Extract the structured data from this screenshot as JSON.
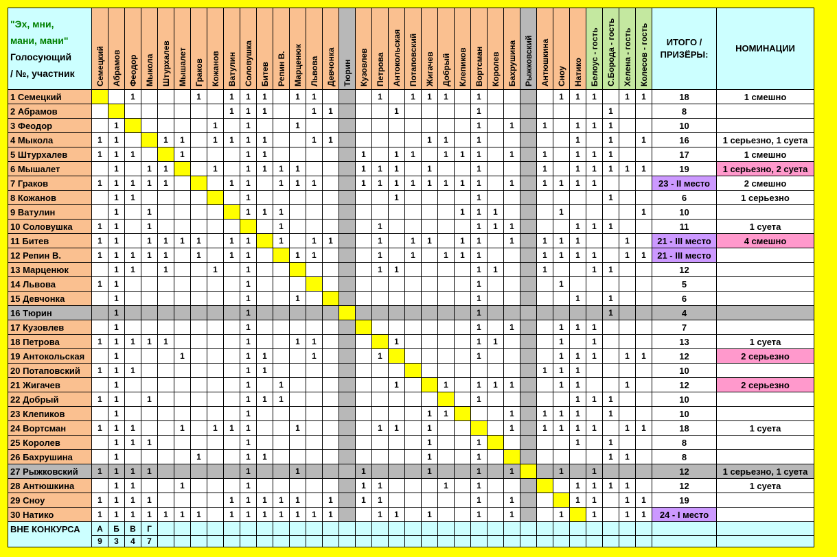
{
  "title": {
    "line1": "\"Эх, мни,",
    "line2": "мани, мани\"",
    "line3": "Голосующий",
    "line4": "/ №, участник"
  },
  "participants": [
    "Семецкий",
    "Абрамов",
    "Феодор",
    "Мыкола",
    "Штурхалев",
    "Мышалет",
    "Граков",
    "Кожанов",
    "Ватулин",
    "Соловушка",
    "Битев",
    "Репин В.",
    "Марценюк",
    "Львова",
    "Девчонка",
    "Тюрин",
    "Кузовлев",
    "Петрова",
    "Антокольская",
    "Потаповский",
    "Жигачев",
    "Добрый",
    "Клепиков",
    "Вортсман",
    "Королев",
    "Бахрушина",
    "Рыжковский",
    "Антюшкина",
    "Сноу",
    "Натико"
  ],
  "guests": [
    "Белоус - гость",
    "С.Борода - гость",
    "Хелена - гость",
    "Колесов - гость"
  ],
  "summary_header": "ИТОГО / ПРИЗЁРЫ:",
  "nominations_header": "НОМИНАЦИИ",
  "gray_participants": [
    16,
    27
  ],
  "rows": [
    {
      "label": "1 Семецкий",
      "votes": [
        3,
        7,
        9,
        10,
        11,
        13,
        14,
        18,
        20,
        21,
        22,
        24,
        29,
        30
      ],
      "guests": [
        1,
        3,
        4
      ],
      "total": "18",
      "nomination": "1 смешно"
    },
    {
      "label": "2 Абрамов",
      "votes": [
        9,
        10,
        11,
        14,
        15,
        19,
        24
      ],
      "guests": [
        2
      ],
      "total": "8",
      "nomination": ""
    },
    {
      "label": "3 Феодор",
      "votes": [
        2,
        8,
        10,
        13,
        24,
        26,
        28,
        30
      ],
      "guests": [
        1,
        2
      ],
      "total": "10",
      "nomination": ""
    },
    {
      "label": "4 Мыкола",
      "votes": [
        1,
        2,
        5,
        6,
        8,
        9,
        10,
        11,
        14,
        15,
        21,
        22,
        24,
        30
      ],
      "guests": [
        2,
        4
      ],
      "total": "16",
      "nomination": "1 серьезно, 1 суета"
    },
    {
      "label": "5 Штурхалев",
      "votes": [
        1,
        2,
        3,
        6,
        10,
        11,
        17,
        19,
        20,
        22,
        23,
        24,
        26,
        28,
        30
      ],
      "guests": [
        1,
        2
      ],
      "total": "17",
      "nomination": "1 смешно"
    },
    {
      "label": "6 Мышалет",
      "votes": [
        2,
        4,
        5,
        8,
        10,
        11,
        12,
        13,
        17,
        18,
        19,
        21,
        24,
        28,
        30
      ],
      "guests": [
        1,
        2,
        3,
        4
      ],
      "total": "19",
      "nomination": "1 серьезно, 2 суета",
      "nom_pink": true
    },
    {
      "label": "7 Граков",
      "votes": [
        1,
        2,
        3,
        4,
        5,
        9,
        10,
        12,
        13,
        14,
        17,
        18,
        19,
        20,
        21,
        22,
        23,
        24,
        26,
        28,
        29,
        30
      ],
      "guests": [
        1
      ],
      "total": "23 - II место",
      "prize": true,
      "nomination": "2 смешно"
    },
    {
      "label": "8 Кожанов",
      "votes": [
        2,
        3,
        10,
        19,
        24
      ],
      "guests": [
        2
      ],
      "total": "6",
      "nomination": "1 серьезно"
    },
    {
      "label": "9 Ватулин",
      "votes": [
        2,
        4,
        10,
        11,
        12,
        23,
        24,
        25,
        29
      ],
      "guests": [
        4
      ],
      "total": "10",
      "nomination": ""
    },
    {
      "label": "10 Соловушка",
      "votes": [
        1,
        2,
        4,
        12,
        18,
        24,
        25,
        26,
        30
      ],
      "guests": [
        1,
        2
      ],
      "total": "11",
      "nomination": "1 суета"
    },
    {
      "label": "11 Битев",
      "votes": [
        1,
        2,
        4,
        5,
        6,
        7,
        9,
        10,
        12,
        14,
        15,
        18,
        20,
        21,
        23,
        24,
        26,
        28,
        29,
        30
      ],
      "guests": [
        3
      ],
      "total": "21 - III место",
      "prize": true,
      "nomination": "4 смешно",
      "nom_pink": true
    },
    {
      "label": "12 Репин В.",
      "votes": [
        1,
        2,
        3,
        4,
        5,
        7,
        9,
        10,
        13,
        14,
        18,
        20,
        22,
        23,
        24,
        28,
        29,
        30
      ],
      "guests": [
        1,
        3,
        4
      ],
      "total": "21 - III место",
      "prize": true,
      "nomination": ""
    },
    {
      "label": "13 Марценюк",
      "votes": [
        2,
        3,
        5,
        8,
        10,
        18,
        19,
        24,
        25,
        28
      ],
      "guests": [
        1,
        2
      ],
      "total": "12",
      "nomination": ""
    },
    {
      "label": "14 Львова",
      "votes": [
        1,
        2,
        10,
        24,
        29
      ],
      "guests": [],
      "total": "5",
      "nomination": ""
    },
    {
      "label": "15 Девчонка",
      "votes": [
        2,
        10,
        13,
        24,
        30
      ],
      "guests": [
        2
      ],
      "total": "6",
      "nomination": ""
    },
    {
      "label": "16 Тюрин",
      "votes": [
        2,
        10,
        24
      ],
      "guests": [
        2
      ],
      "total": "4",
      "nomination": ""
    },
    {
      "label": "17 Кузовлев",
      "votes": [
        2,
        10,
        24,
        26,
        29,
        30
      ],
      "guests": [
        1
      ],
      "total": "7",
      "nomination": ""
    },
    {
      "label": "18 Петрова",
      "votes": [
        1,
        2,
        3,
        4,
        5,
        10,
        13,
        14,
        19,
        24,
        25,
        29
      ],
      "guests": [
        1
      ],
      "total": "13",
      "nomination": "1 суета"
    },
    {
      "label": "19 Антокольская",
      "votes": [
        2,
        6,
        10,
        11,
        14,
        18,
        24,
        29,
        30
      ],
      "guests": [
        1,
        3,
        4
      ],
      "total": "12",
      "nomination": "2 серьезно",
      "nom_pink": true
    },
    {
      "label": "20 Потаповский",
      "votes": [
        1,
        2,
        3,
        10,
        11,
        28,
        29,
        30
      ],
      "guests": [],
      "total": "10",
      "nomination": ""
    },
    {
      "label": "21 Жигачев",
      "votes": [
        2,
        10,
        12,
        19,
        22,
        24,
        25,
        26,
        29,
        30
      ],
      "guests": [
        3
      ],
      "total": "12",
      "nomination": "2 серьезно",
      "nom_pink": true
    },
    {
      "label": "22 Добрый",
      "votes": [
        1,
        2,
        4,
        10,
        11,
        12,
        24,
        30
      ],
      "guests": [
        1,
        2
      ],
      "total": "10",
      "nomination": ""
    },
    {
      "label": "23 Клепиков",
      "votes": [
        2,
        10,
        21,
        22,
        26,
        28,
        29,
        30
      ],
      "guests": [
        2
      ],
      "total": "10",
      "nomination": ""
    },
    {
      "label": "24 Вортсман",
      "votes": [
        1,
        2,
        3,
        6,
        8,
        9,
        10,
        13,
        18,
        19,
        21,
        26,
        28,
        29,
        30
      ],
      "guests": [
        1,
        3,
        4
      ],
      "total": "18",
      "nomination": "1 суета"
    },
    {
      "label": "25 Королев",
      "votes": [
        2,
        3,
        4,
        10,
        21,
        24,
        30
      ],
      "guests": [
        2
      ],
      "total": "8",
      "nomination": ""
    },
    {
      "label": "26 Бахрушина",
      "votes": [
        2,
        7,
        10,
        11,
        21,
        24
      ],
      "guests": [
        2,
        3
      ],
      "total": "8",
      "nomination": ""
    },
    {
      "label": "27 Рыжковский",
      "votes": [
        1,
        2,
        3,
        4,
        10,
        13,
        17,
        21,
        24,
        26,
        29
      ],
      "guests": [
        1
      ],
      "total": "12",
      "nomination": "1 серьезно, 1 суета"
    },
    {
      "label": "28 Антюшкина",
      "votes": [
        2,
        3,
        6,
        10,
        17,
        18,
        22,
        24,
        30
      ],
      "guests": [
        1,
        2,
        3
      ],
      "total": "12",
      "nomination": "1 суета"
    },
    {
      "label": "29 Сноу",
      "votes": [
        1,
        2,
        3,
        4,
        9,
        10,
        11,
        12,
        13,
        15,
        17,
        18,
        24,
        26,
        30
      ],
      "guests": [
        1,
        3,
        4
      ],
      "total": "19",
      "nomination": ""
    },
    {
      "label": "30 Натико",
      "votes": [
        1,
        2,
        3,
        4,
        5,
        6,
        7,
        9,
        10,
        11,
        12,
        13,
        14,
        15,
        18,
        19,
        21,
        24,
        26,
        29
      ],
      "guests": [
        1,
        3,
        4
      ],
      "total": "24 - I место",
      "prize": true,
      "nomination": ""
    }
  ],
  "footer": {
    "label": "ВНЕ КОНКУРСА",
    "letters": [
      "А",
      "Б",
      "В",
      "Г"
    ],
    "numbers": [
      "9",
      "3",
      "4",
      "7"
    ]
  },
  "colors": {
    "background": "#ffff00",
    "header_orange": "#fac090",
    "guest_green": "#c4e8a0",
    "header_cyan": "#ccffff",
    "gray": "#b8b8b8",
    "prize_purple": "#cc99ff",
    "nomination_pink": "#ff99cc",
    "title_green": "#008000"
  }
}
